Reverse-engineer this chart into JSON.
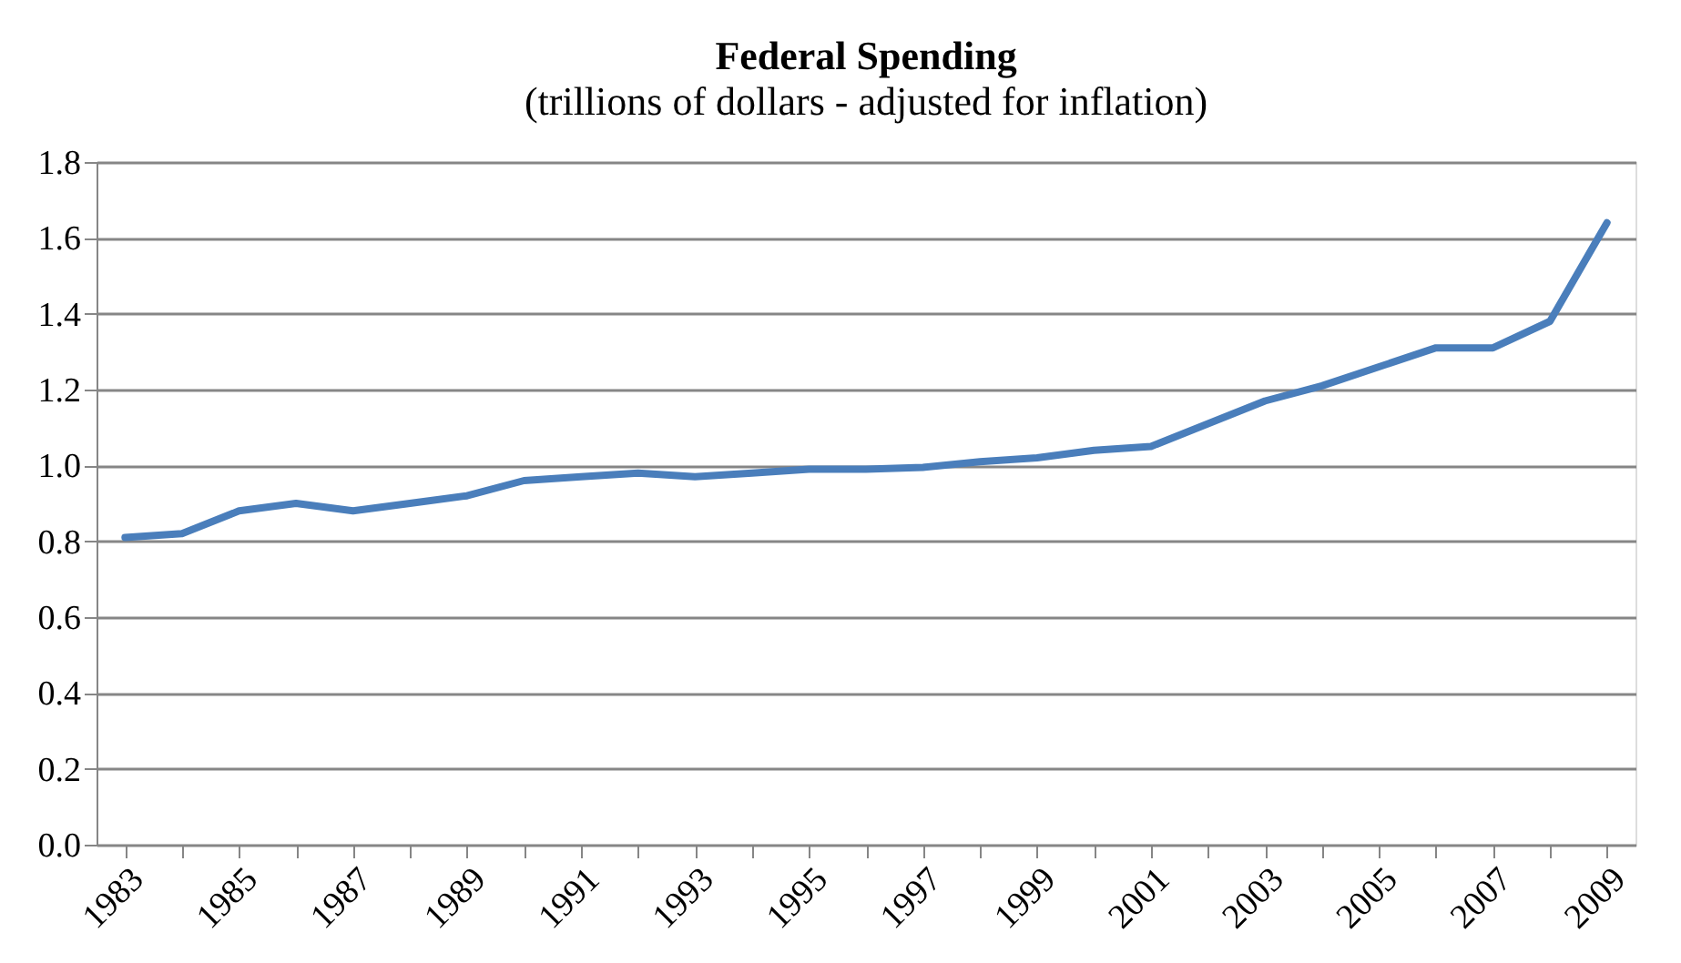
{
  "chart_data": {
    "type": "line",
    "title": "Federal Spending",
    "subtitle": "(trillions of dollars - adjusted for inflation)",
    "categories": [
      "1983",
      null,
      "1985",
      null,
      "1987",
      null,
      "1989",
      null,
      "1991",
      null,
      "1993",
      null,
      "1995",
      null,
      "1997",
      null,
      "1999",
      null,
      "2001",
      null,
      "2003",
      null,
      "2005",
      null,
      "2007",
      null,
      "2009"
    ],
    "series": [
      {
        "color": "#4a7ebb",
        "values": [
          0.81,
          0.82,
          0.88,
          0.9,
          0.88,
          0.9,
          0.92,
          0.96,
          0.97,
          0.98,
          0.97,
          0.98,
          0.99,
          0.99,
          0.995,
          1.01,
          1.02,
          1.04,
          1.05,
          1.11,
          1.17,
          1.21,
          1.26,
          1.31,
          1.31,
          1.38,
          1.64
        ]
      }
    ],
    "ylim": [
      0,
      1.8
    ],
    "yticks": [
      {
        "value": 0,
        "label": "0.0"
      },
      {
        "value": 0.2,
        "label": "0.2"
      },
      {
        "value": 0.4,
        "label": "0.4"
      },
      {
        "value": 0.6,
        "label": "0.6"
      },
      {
        "value": 0.8,
        "label": "0.8"
      },
      {
        "value": 1.0,
        "label": "1.0"
      },
      {
        "value": 1.2,
        "label": "1.2"
      },
      {
        "value": 1.4,
        "label": "1.4"
      },
      {
        "value": 1.6,
        "label": "1.6"
      },
      {
        "value": 1.8,
        "label": "1.8"
      }
    ],
    "grid": "y",
    "marker": "none",
    "line_style": "solid"
  }
}
